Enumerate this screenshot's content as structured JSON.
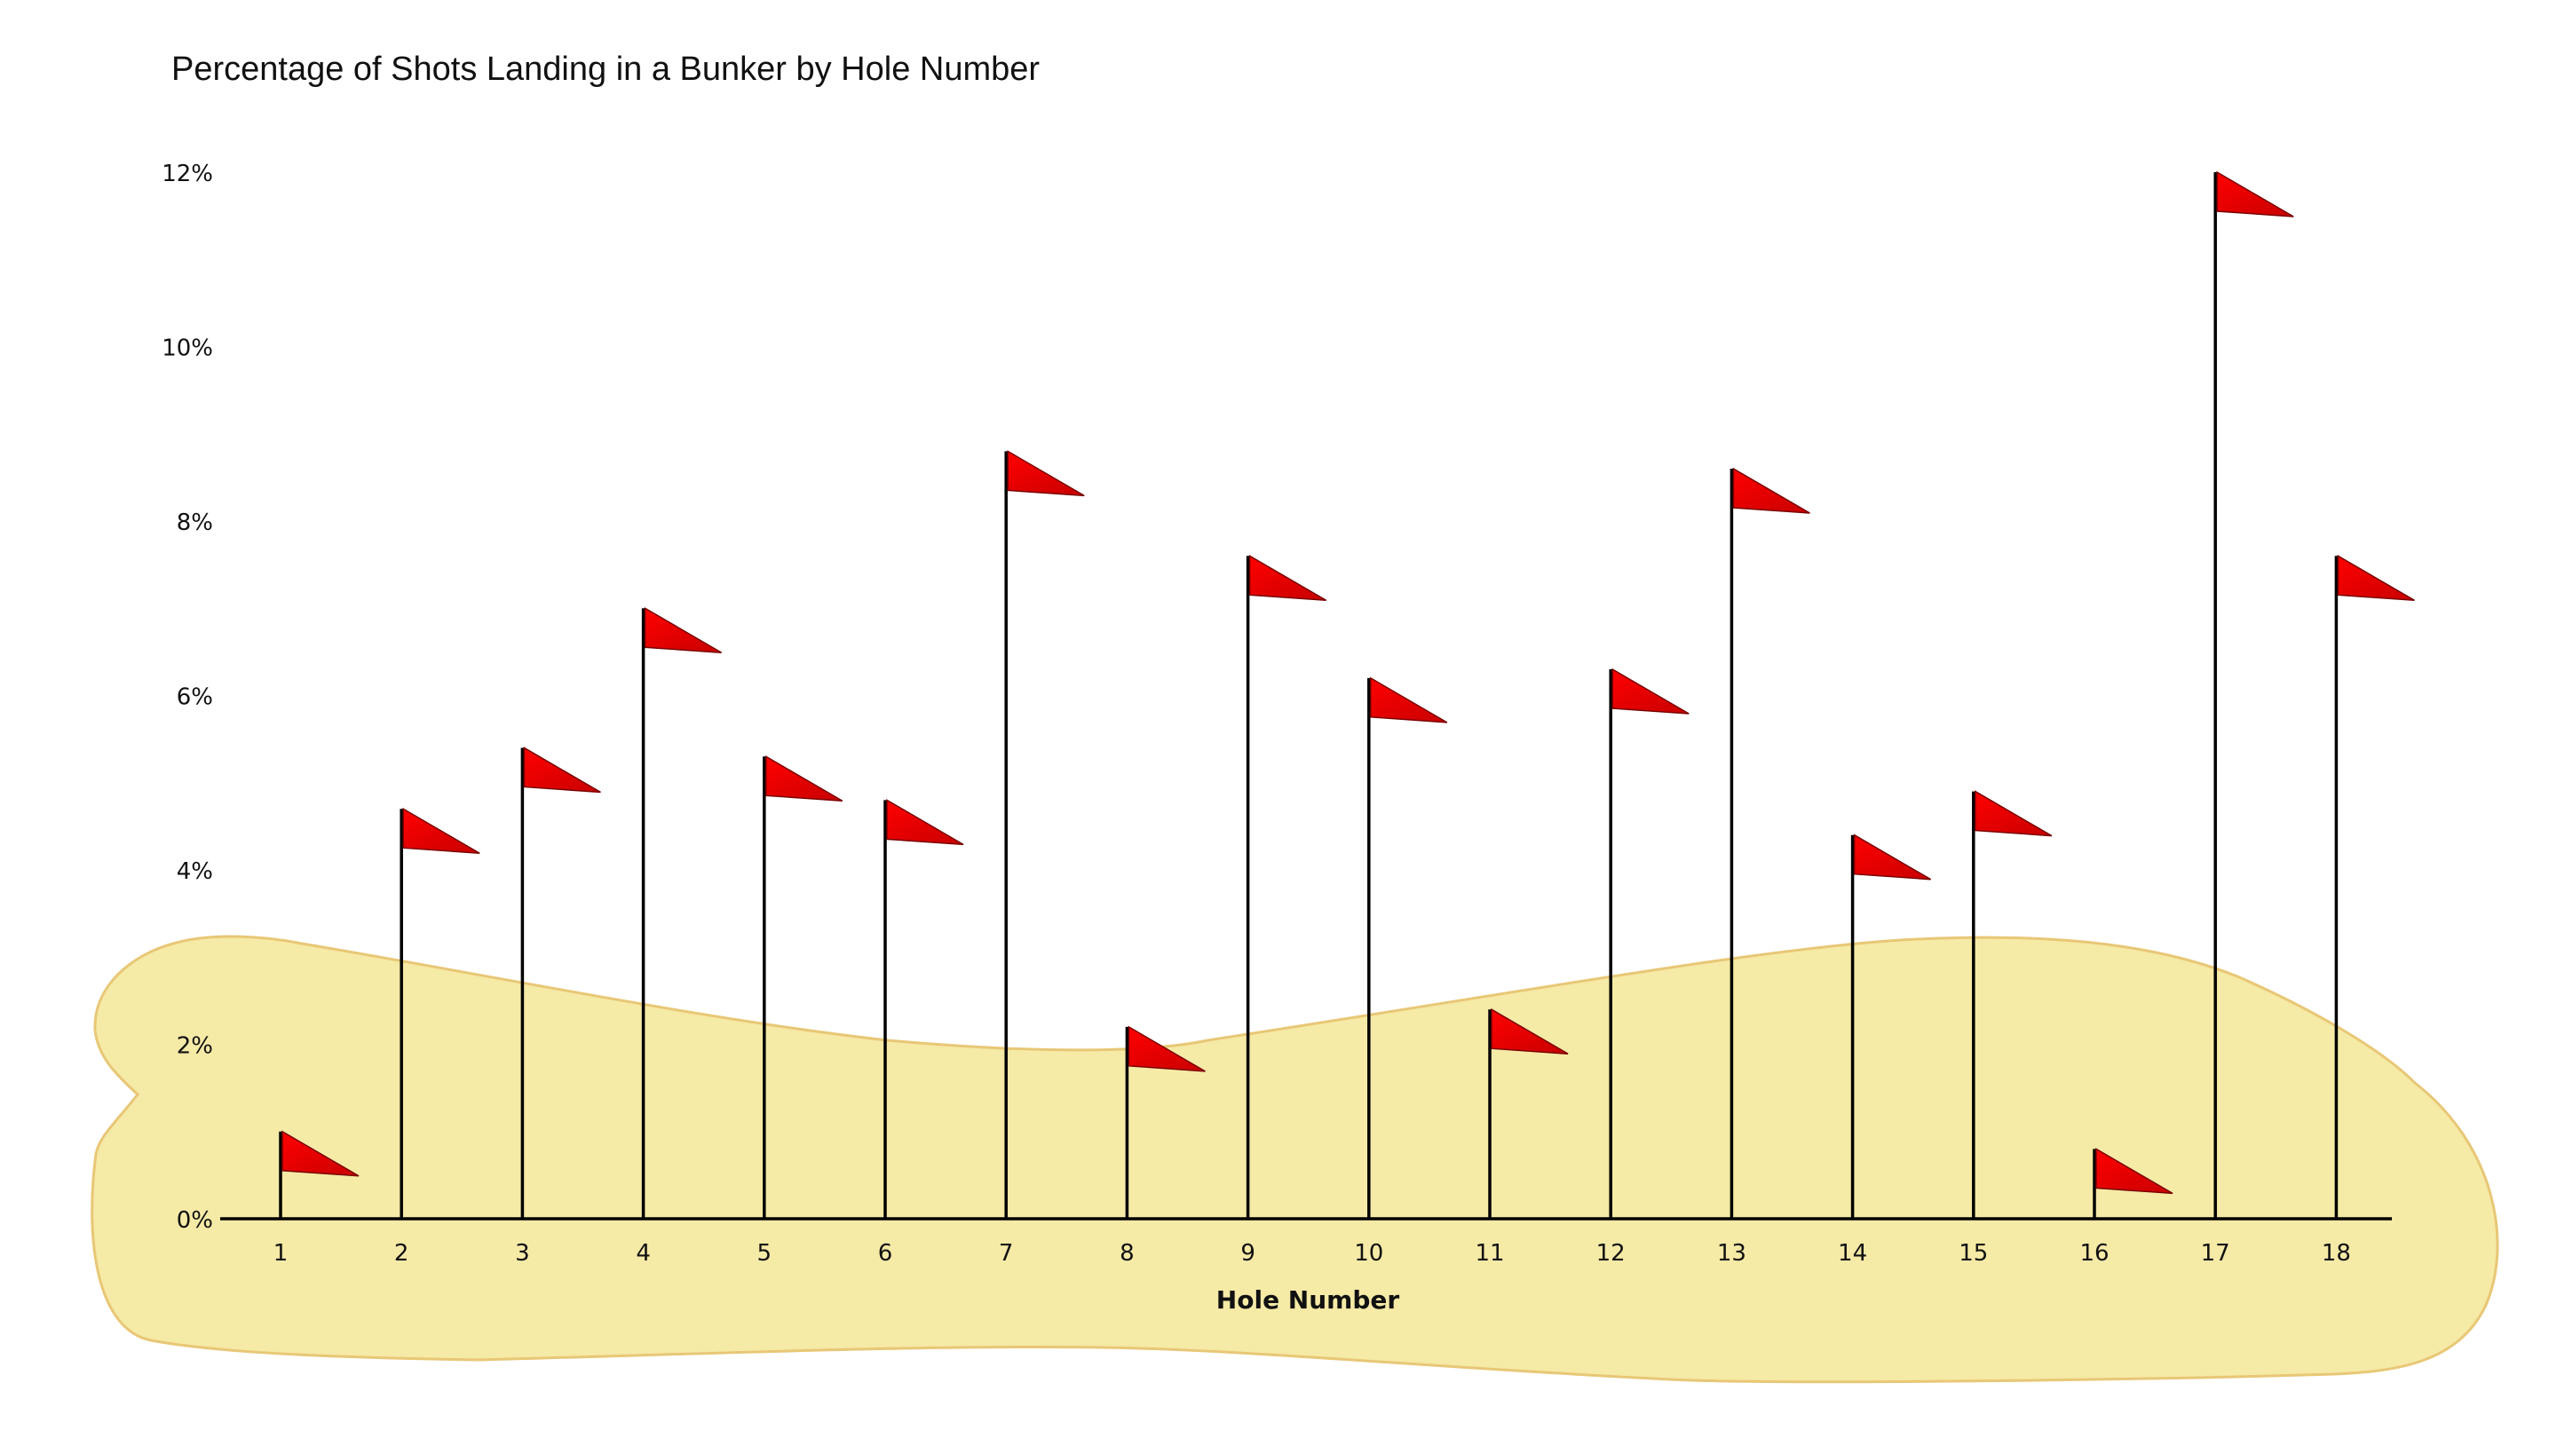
{
  "chart_data": {
    "type": "bar",
    "style": "golf flags on poles over a sand bunker shape",
    "title": "Percentage of Shots Landing in a Bunker by Hole Number",
    "xlabel": "Hole Number",
    "ylabel": "",
    "categories": [
      "1",
      "2",
      "3",
      "4",
      "5",
      "6",
      "7",
      "8",
      "9",
      "10",
      "11",
      "12",
      "13",
      "14",
      "15",
      "16",
      "17",
      "18"
    ],
    "values": [
      1.0,
      4.7,
      5.4,
      7.0,
      5.3,
      4.8,
      8.8,
      2.2,
      7.6,
      6.2,
      2.4,
      6.3,
      8.6,
      4.4,
      4.9,
      0.8,
      12.0,
      7.6
    ],
    "y_ticks": [
      "0%",
      "2%",
      "4%",
      "6%",
      "8%",
      "10%",
      "12%"
    ],
    "ylim": [
      0,
      12
    ],
    "grid": false,
    "legend": "none",
    "colors": {
      "flag": "#ff0000",
      "flag_shade": "#c80000",
      "flag_outline": "#7a0000",
      "pole": "#000000",
      "bunker_fill": "#f5eaa6",
      "bunker_outline": "#e8c776",
      "axis": "#000000",
      "text": "#111111"
    }
  }
}
